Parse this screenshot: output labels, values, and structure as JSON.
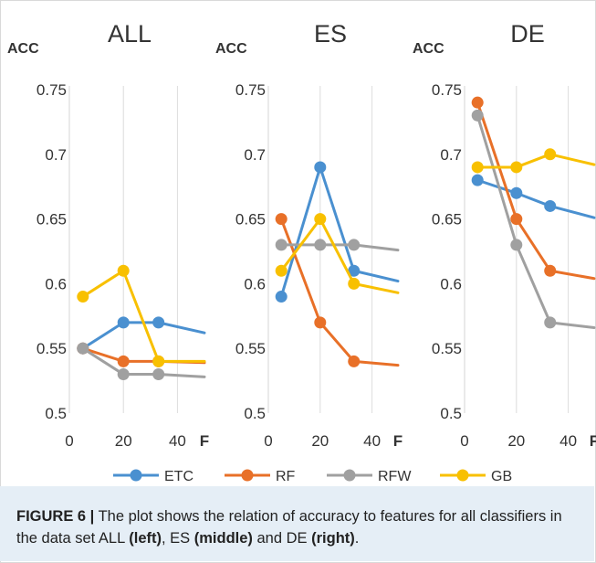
{
  "colors": {
    "ETC": "#4a90d0",
    "RF": "#e87028",
    "RFW": "#a0a0a0",
    "GB": "#f8c000",
    "grid": "#dcdcdc",
    "text": "#333333",
    "caption_bg": "#e5eef6"
  },
  "chart_data": [
    {
      "type": "line",
      "title": "ALL",
      "ylabel": "ACC",
      "xlabel": "F",
      "ylim": [
        0.5,
        0.75
      ],
      "xlim": [
        0,
        50
      ],
      "yticks": [
        "0.5",
        "0.55",
        "0.6",
        "0.65",
        "0.7",
        "0.75"
      ],
      "xticks": [
        "0",
        "20",
        "40"
      ],
      "grid": "vertical",
      "series": [
        {
          "name": "ETC",
          "x": [
            5,
            20,
            33,
            50
          ],
          "y": [
            0.55,
            0.57,
            0.57,
            0.562
          ]
        },
        {
          "name": "RF",
          "x": [
            5,
            20,
            33,
            50
          ],
          "y": [
            0.55,
            0.54,
            0.54,
            0.539
          ]
        },
        {
          "name": "RFW",
          "x": [
            5,
            20,
            33,
            50
          ],
          "y": [
            0.55,
            0.53,
            0.53,
            0.528
          ]
        },
        {
          "name": "GB",
          "x": [
            5,
            20,
            33,
            50
          ],
          "y": [
            0.59,
            0.61,
            0.54,
            0.54
          ]
        }
      ]
    },
    {
      "type": "line",
      "title": "ES",
      "ylabel": "ACC",
      "xlabel": "F",
      "ylim": [
        0.5,
        0.75
      ],
      "xlim": [
        0,
        50
      ],
      "yticks": [
        "0.5",
        "0.55",
        "0.6",
        "0.65",
        "0.7",
        "0.75"
      ],
      "xticks": [
        "0",
        "20",
        "40"
      ],
      "grid": "vertical",
      "series": [
        {
          "name": "ETC",
          "x": [
            5,
            20,
            33,
            50
          ],
          "y": [
            0.59,
            0.69,
            0.61,
            0.602
          ]
        },
        {
          "name": "RF",
          "x": [
            5,
            20,
            33,
            50
          ],
          "y": [
            0.65,
            0.57,
            0.54,
            0.537
          ]
        },
        {
          "name": "RFW",
          "x": [
            5,
            20,
            33,
            50
          ],
          "y": [
            0.63,
            0.63,
            0.63,
            0.626
          ]
        },
        {
          "name": "GB",
          "x": [
            5,
            20,
            33,
            50
          ],
          "y": [
            0.61,
            0.65,
            0.6,
            0.593
          ]
        }
      ]
    },
    {
      "type": "line",
      "title": "DE",
      "ylabel": "ACC",
      "xlabel": "F",
      "ylim": [
        0.5,
        0.75
      ],
      "xlim": [
        0,
        50
      ],
      "yticks": [
        "0.5",
        "0.55",
        "0.6",
        "0.65",
        "0.7",
        "0.75"
      ],
      "xticks": [
        "0",
        "20",
        "40"
      ],
      "grid": "vertical",
      "series": [
        {
          "name": "ETC",
          "x": [
            5,
            20,
            33,
            50
          ],
          "y": [
            0.68,
            0.67,
            0.66,
            0.651
          ]
        },
        {
          "name": "RF",
          "x": [
            5,
            20,
            33,
            50
          ],
          "y": [
            0.74,
            0.65,
            0.61,
            0.604
          ]
        },
        {
          "name": "RFW",
          "x": [
            5,
            20,
            33,
            50
          ],
          "y": [
            0.73,
            0.63,
            0.57,
            0.566
          ]
        },
        {
          "name": "GB",
          "x": [
            5,
            20,
            33,
            50
          ],
          "y": [
            0.69,
            0.69,
            0.7,
            0.692
          ]
        }
      ]
    }
  ],
  "legend": {
    "placement": "bottom",
    "items": [
      "ETC",
      "RF",
      "RFW",
      "GB"
    ]
  },
  "caption": {
    "label": "FIGURE 6 |",
    "part1": " The plot shows the relation of accuracy to features for all classifiers in the data set ALL ",
    "left": "(left)",
    "part2": ", ES ",
    "middle": "(middle)",
    "part3": " and DE ",
    "right": "(right)",
    "end": "."
  }
}
